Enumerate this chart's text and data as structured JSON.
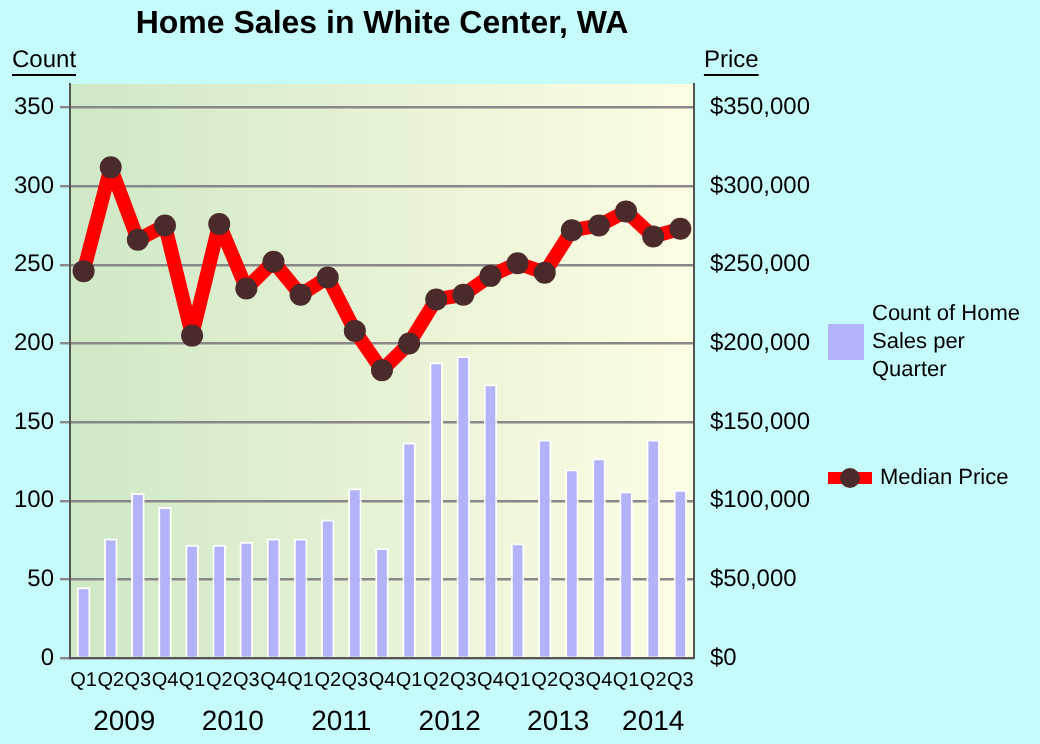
{
  "chart_data": {
    "type": "bar",
    "title": "Home Sales in White Center, WA",
    "ylabel": "Count",
    "y2label": "Price",
    "categories": [
      "Q1",
      "Q2",
      "Q3",
      "Q4",
      "Q1",
      "Q2",
      "Q3",
      "Q4",
      "Q1",
      "Q2",
      "Q3",
      "Q4",
      "Q1",
      "Q2",
      "Q3",
      "Q4",
      "Q1",
      "Q2",
      "Q3",
      "Q4",
      "Q1",
      "Q2",
      "Q3"
    ],
    "annotations": [
      "2009",
      "2010",
      "2011",
      "2012",
      "2013",
      "2014"
    ],
    "series": [
      {
        "name": "Count of Home Sales per Quarter",
        "color": "#b3b3fb",
        "values": [
          45,
          76,
          105,
          96,
          72,
          72,
          74,
          76,
          76,
          88,
          108,
          70,
          137,
          188,
          192,
          174,
          73,
          139,
          120,
          127,
          106,
          139,
          107
        ]
      },
      {
        "name": "Median Price",
        "type": "line",
        "axis": "y2",
        "color": "#ff0000",
        "values": [
          246000,
          312000,
          266000,
          275000,
          205000,
          276000,
          235000,
          252000,
          231000,
          242000,
          208000,
          183000,
          200000,
          228000,
          231000,
          243000,
          251000,
          245000,
          272000,
          275000,
          284000,
          268000,
          273000
        ]
      }
    ],
    "ylim": [
      0,
      365
    ],
    "yticks": [
      0,
      50,
      100,
      150,
      200,
      250,
      300,
      350
    ],
    "y2lim": [
      0,
      365000
    ],
    "y2ticks": [
      {
        "value": 0,
        "label": "$0"
      },
      {
        "value": 50000,
        "label": "$50,000"
      },
      {
        "value": 100000,
        "label": "$100,000"
      },
      {
        "value": 150000,
        "label": "$150,000"
      },
      {
        "value": 200000,
        "label": "$200,000"
      },
      {
        "value": 250000,
        "label": "$250,000"
      },
      {
        "value": 300000,
        "label": "$300,000"
      },
      {
        "value": 350000,
        "label": "$350,000"
      }
    ],
    "grid": "y",
    "legend": "right",
    "marker": "circle"
  }
}
